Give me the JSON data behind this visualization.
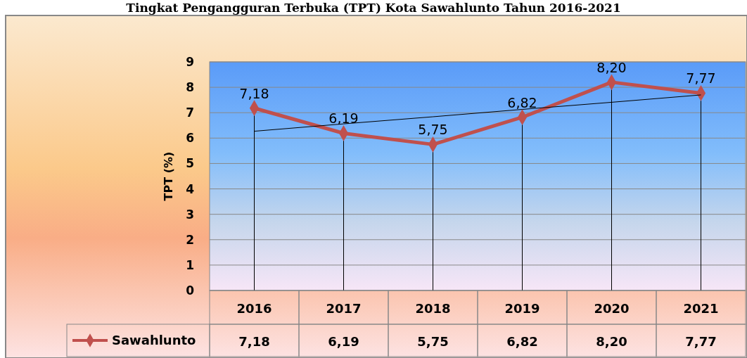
{
  "chart_data": {
    "type": "line",
    "title": "Tingkat Pengangguran Terbuka (TPT) Kota Sawahlunto Tahun 2016-2021",
    "ylabel": "TPT (%)",
    "categories": [
      "2016",
      "2017",
      "2018",
      "2019",
      "2020",
      "2021"
    ],
    "series": [
      {
        "name": "Sawahlunto",
        "color": "#c0504d",
        "values": [
          7.18,
          6.19,
          5.75,
          6.82,
          8.2,
          7.77
        ],
        "marker": "diamond"
      },
      {
        "type": "line",
        "values": [
          6.27,
          6.56,
          6.84,
          7.13,
          7.41,
          7.7
        ],
        "color": "#000000",
        "marker": "none"
      }
    ],
    "value_labels": [
      "7,18",
      "6,19",
      "5,75",
      "6,82",
      "8,20",
      "7,77"
    ],
    "ylim": [
      0,
      9
    ],
    "yticks": [
      0,
      1,
      2,
      3,
      4,
      5,
      6,
      7,
      8,
      9
    ],
    "grid": true,
    "legend": "bottom"
  }
}
